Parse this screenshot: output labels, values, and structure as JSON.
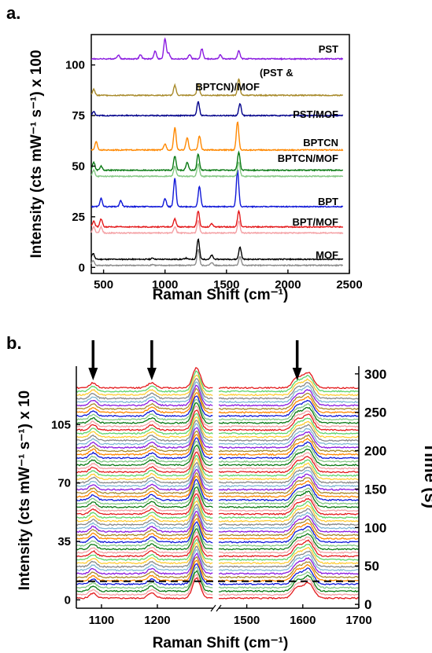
{
  "panel_a": {
    "label": "a.",
    "chart_data": {
      "type": "line",
      "xlabel": "Raman Shift (cm⁻¹)",
      "ylabel": "Intensity (cts mW⁻¹ s⁻¹) x 100",
      "xlim": [
        400,
        2500
      ],
      "ylim": [
        -3,
        115
      ],
      "x_ticks": [
        500,
        1000,
        1500,
        2000,
        2500
      ],
      "y_ticks": [
        0,
        25,
        50,
        75,
        100
      ],
      "series": [
        {
          "name": "MOF",
          "color": "#000000",
          "baseline": 4,
          "peaks": [
            [
              415,
              3
            ],
            [
              900,
              0.6
            ],
            [
              1170,
              0.6
            ],
            [
              1270,
              10
            ],
            [
              1380,
              2
            ],
            [
              1610,
              6
            ]
          ]
        },
        {
          "name": "",
          "color": "#8c8c8c",
          "baseline": 1,
          "peaks": [
            [
              415,
              2.5
            ],
            [
              900,
              0.5
            ],
            [
              1270,
              8
            ],
            [
              1380,
              1.5
            ],
            [
              1610,
              4.5
            ]
          ]
        },
        {
          "name": "BPT/MOF",
          "color": "#e41a1c",
          "baseline": 20,
          "peaks": [
            [
              420,
              3
            ],
            [
              480,
              4
            ],
            [
              1080,
              4
            ],
            [
              1270,
              8
            ],
            [
              1380,
              1.5
            ],
            [
              1600,
              8
            ]
          ]
        },
        {
          "name": "",
          "color": "#f4a0a4",
          "baseline": 17,
          "peaks": [
            [
              420,
              3
            ],
            [
              480,
              3
            ],
            [
              1080,
              3
            ],
            [
              1270,
              6
            ],
            [
              1600,
              6
            ]
          ]
        },
        {
          "name": "BPT",
          "color": "#1018d8",
          "baseline": 30,
          "peaks": [
            [
              480,
              4
            ],
            [
              640,
              3
            ],
            [
              1000,
              4
            ],
            [
              1080,
              14
            ],
            [
              1280,
              10
            ],
            [
              1590,
              18
            ]
          ]
        },
        {
          "name": "BPTCN/MOF",
          "color": "#0a7a14",
          "baseline": 48,
          "peaks": [
            [
              420,
              4
            ],
            [
              480,
              2
            ],
            [
              1080,
              7
            ],
            [
              1180,
              4
            ],
            [
              1270,
              8
            ],
            [
              1600,
              9
            ]
          ]
        },
        {
          "name": "",
          "color": "#84c884",
          "baseline": 45,
          "peaks": [
            [
              420,
              3
            ],
            [
              1080,
              5
            ],
            [
              1270,
              6
            ],
            [
              1600,
              7
            ]
          ]
        },
        {
          "name": "BPTCN",
          "color": "#ff8800",
          "baseline": 58,
          "peaks": [
            [
              440,
              4
            ],
            [
              1000,
              3
            ],
            [
              1080,
              11
            ],
            [
              1180,
              6
            ],
            [
              1280,
              7
            ],
            [
              1590,
              14
            ]
          ]
        },
        {
          "name": "PST/MOF",
          "color": "#00008b",
          "baseline": 75,
          "peaks": [
            [
              420,
              2
            ],
            [
              1270,
              7
            ],
            [
              1610,
              6
            ]
          ]
        },
        {
          "name": "(PST & BPTCN)/MOF",
          "color": "#a88a2a",
          "baseline": 85,
          "peaks": [
            [
              420,
              3
            ],
            [
              1080,
              5
            ],
            [
              1270,
              6
            ],
            [
              1600,
              8
            ]
          ]
        },
        {
          "name": "PST",
          "color": "#8a1ae0",
          "baseline": 103,
          "peaks": [
            [
              620,
              2
            ],
            [
              800,
              2
            ],
            [
              920,
              4
            ],
            [
              1000,
              10
            ],
            [
              1030,
              3
            ],
            [
              1200,
              2
            ],
            [
              1300,
              5
            ],
            [
              1450,
              2
            ],
            [
              1600,
              4
            ]
          ]
        }
      ],
      "labels": [
        "MOF",
        "BPT/MOF",
        "BPT",
        "BPTCN/MOF",
        "BPTCN",
        "PST/MOF",
        "(PST &",
        "BPTCN)/MOF",
        "PST"
      ]
    }
  },
  "panel_b": {
    "label": "b.",
    "chart_data": {
      "type": "line",
      "xlabel": "Raman Shift (cm⁻¹)",
      "ylabel": "Intensity (cts mW⁻¹ s⁻¹) x 10",
      "ylabel_right": "Time (s)",
      "x_segments": [
        [
          1055,
          1300
        ],
        [
          1450,
          1700
        ]
      ],
      "x_ticks": [
        1100,
        1200,
        1500,
        1600,
        1700
      ],
      "ylim": [
        -5,
        140
      ],
      "y_ticks": [
        0,
        35,
        70,
        105
      ],
      "time_lim": [
        -5,
        310
      ],
      "time_ticks": [
        0,
        50,
        100,
        150,
        200,
        250,
        300
      ],
      "n_spectra": 61,
      "time_step_s": 5,
      "series_colors": [
        "#e41a1c",
        "#f4a0a4",
        "#0a7a14",
        "#84c884",
        "#1018d8",
        "#ff8800",
        "#a88a2a",
        "#8a1ae0",
        "#7fb8d4",
        "#888888",
        "#ffcc33",
        "#5fd36a"
      ],
      "dashed_line_time_s": 30,
      "arrows_at_cm": [
        1085,
        1190,
        1590
      ]
    }
  }
}
